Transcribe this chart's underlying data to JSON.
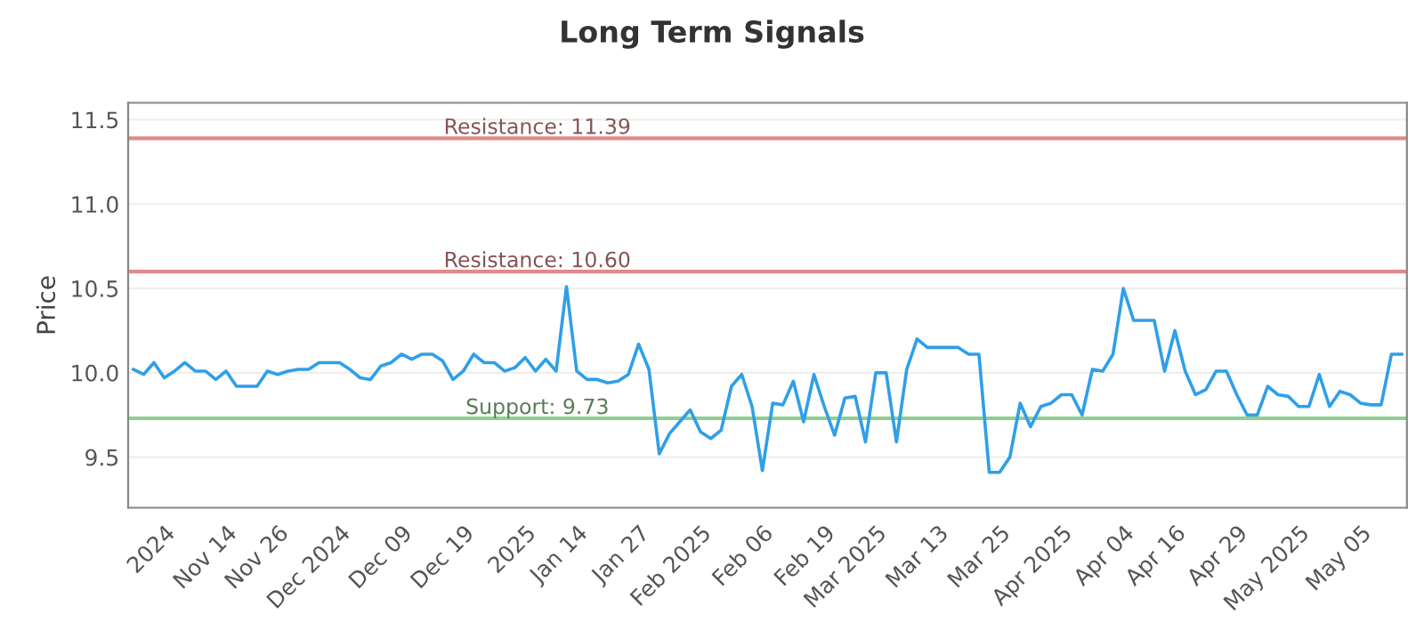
{
  "chart_data": {
    "type": "line",
    "title": "Long Term Signals",
    "ylabel": "Price",
    "categories": [
      null,
      null,
      null,
      "2024",
      null,
      null,
      null,
      null,
      null,
      "Nov 14",
      null,
      null,
      null,
      null,
      "Nov 26",
      null,
      null,
      null,
      null,
      null,
      "Dec 2024",
      null,
      null,
      null,
      null,
      null,
      "Dec 09",
      null,
      null,
      null,
      null,
      null,
      "Dec 19",
      null,
      null,
      null,
      null,
      null,
      "2025",
      null,
      null,
      null,
      null,
      "Jan 14",
      null,
      null,
      null,
      null,
      null,
      "Jan 27",
      null,
      null,
      null,
      null,
      null,
      "Feb 2025",
      null,
      null,
      null,
      null,
      null,
      "Feb 06",
      null,
      null,
      null,
      null,
      null,
      "Feb 19",
      null,
      null,
      null,
      null,
      "Mar 2025",
      null,
      null,
      null,
      null,
      null,
      "Mar 13",
      null,
      null,
      null,
      null,
      null,
      "Mar 25",
      null,
      null,
      null,
      null,
      null,
      "Apr 2025",
      null,
      null,
      null,
      null,
      null,
      "Apr 04",
      null,
      null,
      null,
      null,
      "Apr 16",
      null,
      null,
      null,
      null,
      null,
      "Apr 29",
      null,
      null,
      null,
      null,
      null,
      "May 2025",
      null,
      null,
      null,
      null,
      null,
      "May 05",
      null,
      null,
      null,
      null
    ],
    "series": [
      {
        "color": "#2f9fe8",
        "values": [
          10.02,
          9.99,
          10.06,
          9.97,
          10.01,
          10.06,
          10.01,
          10.01,
          9.96,
          10.01,
          9.92,
          9.92,
          9.92,
          10.01,
          9.99,
          10.01,
          10.02,
          10.02,
          10.06,
          10.06,
          10.06,
          10.02,
          9.97,
          9.96,
          10.04,
          10.06,
          10.11,
          10.08,
          10.11,
          10.11,
          10.07,
          9.96,
          10.01,
          10.11,
          10.06,
          10.06,
          10.01,
          10.03,
          10.09,
          10.01,
          10.08,
          10.01,
          10.51,
          10.01,
          9.96,
          9.96,
          9.94,
          9.95,
          9.99,
          10.17,
          10.02,
          9.52,
          9.64,
          9.71,
          9.78,
          9.65,
          9.61,
          9.66,
          9.92,
          9.99,
          9.8,
          9.42,
          9.82,
          9.81,
          9.95,
          9.71,
          9.99,
          9.8,
          9.63,
          9.85,
          9.86,
          9.59,
          10.0,
          10.0,
          9.59,
          10.02,
          10.2,
          10.15,
          10.15,
          10.15,
          10.15,
          10.11,
          10.11,
          9.41,
          9.41,
          9.5,
          9.82,
          9.68,
          9.8,
          9.82,
          9.87,
          9.87,
          9.75,
          10.02,
          10.01,
          10.11,
          10.5,
          10.31,
          10.31,
          10.31,
          10.01,
          10.25,
          10.01,
          9.87,
          9.9,
          10.01,
          10.01,
          9.87,
          9.75,
          9.75,
          9.92,
          9.87,
          9.86,
          9.8,
          9.8,
          9.99,
          9.8,
          9.89,
          9.87,
          9.82,
          9.81,
          9.81,
          10.11,
          10.11
        ]
      }
    ],
    "ylim": [
      9.2,
      11.6
    ],
    "yticks": [
      {
        "value": 9.5,
        "label": "9.5"
      },
      {
        "value": 10,
        "label": "10.0"
      },
      {
        "value": 10.5,
        "label": "10.5"
      },
      {
        "value": 11,
        "label": "11.0"
      },
      {
        "value": 11.5,
        "label": "11.5"
      }
    ],
    "grid": "y",
    "marker": "none",
    "line_style": "solid",
    "ref_lines": [
      {
        "axis": "y",
        "value": 11.39,
        "label": "Resistance: 11.39",
        "color": "#e08a8a"
      },
      {
        "axis": "y",
        "value": 10.6,
        "label": "Resistance: 10.60",
        "color": "#e08a8a"
      },
      {
        "axis": "y",
        "value": 9.73,
        "label": "Support: 9.73",
        "color": "#8fcf8f"
      }
    ]
  }
}
